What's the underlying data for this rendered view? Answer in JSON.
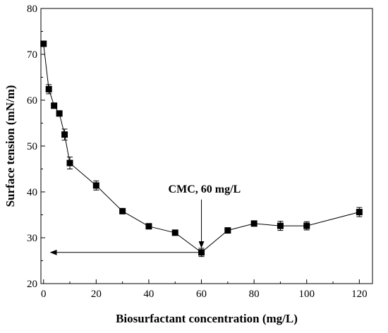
{
  "chart_data": {
    "type": "line",
    "title": "",
    "xlabel": "Biosurfactant concentration (mg/L)",
    "ylabel": "Surface tension (mN/m)",
    "xlim": [
      -1,
      125
    ],
    "ylim": [
      20,
      80
    ],
    "x_ticks": [
      0,
      20,
      40,
      60,
      80,
      100,
      120
    ],
    "y_ticks": [
      20,
      30,
      40,
      50,
      60,
      70,
      80
    ],
    "x_tick_labels": [
      "0",
      "20",
      "40",
      "60",
      "80",
      "100",
      "120"
    ],
    "y_tick_labels": [
      "20",
      "30",
      "40",
      "50",
      "60",
      "70",
      "80"
    ],
    "marker": "square",
    "line_color": "#000000",
    "marker_color": "#000000",
    "series": [
      {
        "x": [
          0,
          2,
          4,
          6,
          8,
          10,
          20,
          30,
          40,
          50,
          60,
          70,
          80,
          90,
          100,
          120
        ],
        "y": [
          72.3,
          62.4,
          58.8,
          57.1,
          52.5,
          46.3,
          41.4,
          35.8,
          32.5,
          31.1,
          26.8,
          31.6,
          33.1,
          32.6,
          32.6,
          35.6
        ],
        "error": [
          0,
          1.0,
          0,
          0,
          1.2,
          1.3,
          1.0,
          0,
          0,
          0,
          0.9,
          0,
          0,
          1.0,
          0.9,
          1.0
        ]
      }
    ],
    "annotations": [
      {
        "text": "CMC, 60 mg/L",
        "arrow_to": [
          60,
          26.8
        ]
      }
    ],
    "reference_line": {
      "from": [
        60,
        26.8
      ],
      "to": [
        0,
        26.8
      ],
      "arrow": "left"
    },
    "grid": false,
    "legend": "none"
  }
}
